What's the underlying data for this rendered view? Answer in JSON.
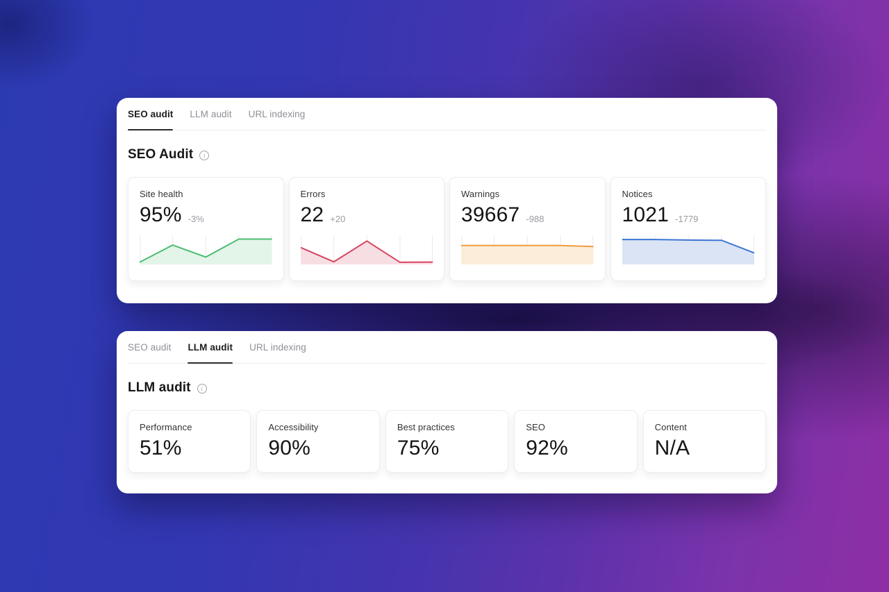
{
  "background": {
    "left_color": "#2c3ab2",
    "right_color": "#8e2ea4",
    "dark_overlay": "#0e072a"
  },
  "panels": [
    {
      "tabs": [
        {
          "label": "SEO audit",
          "active": true
        },
        {
          "label": "LLM audit",
          "active": false
        },
        {
          "label": "URL indexing",
          "active": false
        }
      ],
      "title": "SEO Audit",
      "info_icon": "info-circle",
      "metrics": [
        {
          "label": "Site health",
          "value": "95%",
          "delta": "-3%",
          "color": "#4dbd72",
          "fill": "#e3f4e9",
          "spark": [
            3,
            72,
            24,
            96,
            96
          ]
        },
        {
          "label": "Errors",
          "value": "22",
          "delta": "+20",
          "color": "#d5455f",
          "fill": "#f7dee3",
          "spark": [
            62,
            5,
            88,
            3,
            4
          ]
        },
        {
          "label": "Warnings",
          "value": "39667",
          "delta": "-988",
          "color": "#f29b3d",
          "fill": "#fcedda",
          "spark": [
            70,
            70,
            70,
            70,
            66
          ]
        },
        {
          "label": "Notices",
          "value": "1021",
          "delta": "-1779",
          "color": "#3d76d2",
          "fill": "#dae4f4",
          "spark": [
            94,
            94,
            92,
            91,
            40
          ]
        }
      ]
    },
    {
      "tabs": [
        {
          "label": "SEO audit",
          "active": false
        },
        {
          "label": "LLM audit",
          "active": true
        },
        {
          "label": "URL indexing",
          "active": false
        }
      ],
      "title": "LLM audit",
      "info_icon": "info-circle",
      "metrics": [
        {
          "label": "Performance",
          "value": "51%"
        },
        {
          "label": "Accessibility",
          "value": "90%"
        },
        {
          "label": "Best practices",
          "value": "75%"
        },
        {
          "label": "SEO",
          "value": "92%"
        },
        {
          "label": "Content",
          "value": "N/A"
        }
      ]
    }
  ]
}
